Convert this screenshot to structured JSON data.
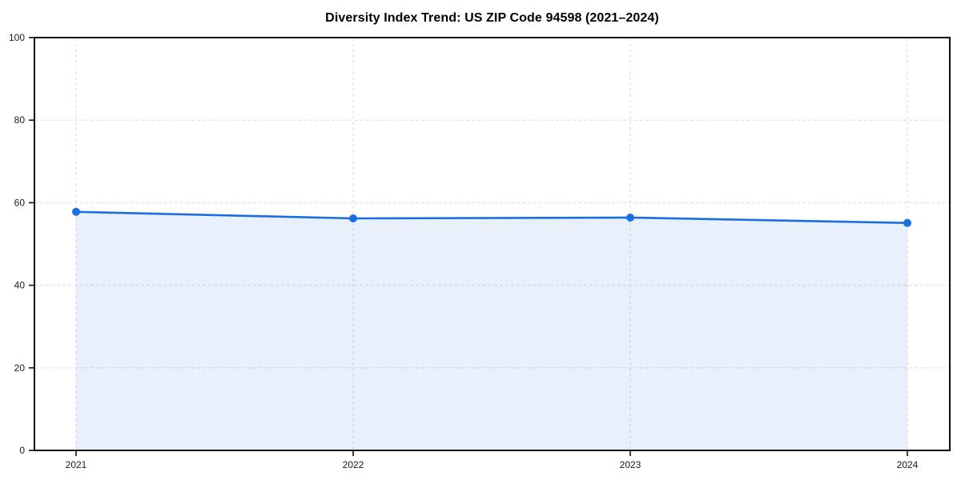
{
  "chart_data": {
    "type": "area",
    "title": "Diversity Index Trend: US ZIP Code 94598 (2021–2024)",
    "categories": [
      "2021",
      "2022",
      "2023",
      "2024"
    ],
    "series": [
      {
        "name": "Diversity Index",
        "values": [
          57.8,
          56.2,
          56.4,
          55.1
        ]
      }
    ],
    "xlabel": "",
    "ylabel": "",
    "ylim": [
      0,
      100
    ],
    "yticks": [
      0,
      20,
      40,
      60,
      80,
      100
    ],
    "grid": true,
    "grid_style": "dashed",
    "legend_position": "none",
    "line_color": "#1a6fe0",
    "marker": "circle",
    "marker_color": "#1a6fe0",
    "fill_color": "#1a6fe0",
    "fill_opacity": 0.1,
    "grid_color": "#dcdcdc",
    "axis_color": "#0d0d0d",
    "background_color": "#ffffff"
  }
}
